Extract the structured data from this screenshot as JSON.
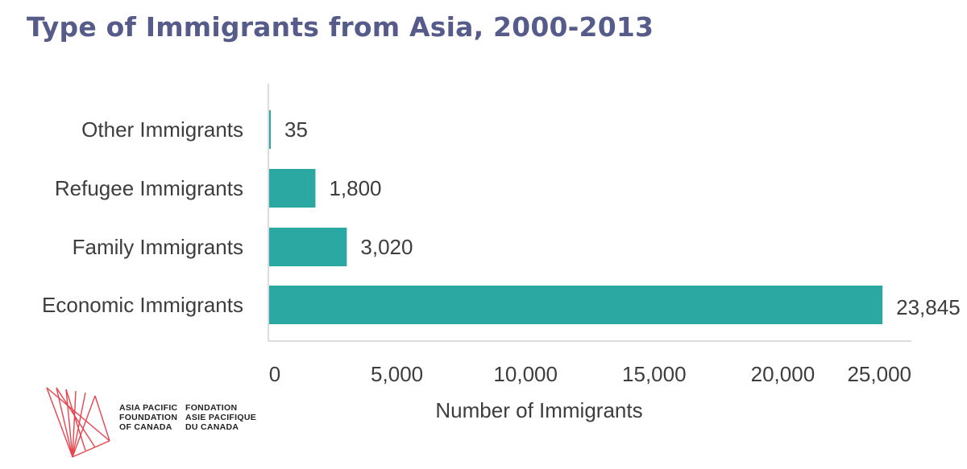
{
  "title": "Type of Immigrants from Asia, 2000-2013",
  "logo": {
    "text_en": "ASIA PACIFIC\nFOUNDATION\nOF CANADA",
    "text_fr": "FONDATION\nASIE PACIFIQUE\nDU CANADA",
    "mark_color": "#e8434d",
    "icon": "apf-logo-icon"
  },
  "colors": {
    "bar": "#2aa8a1",
    "title": "#565b8a",
    "axis": "#d0d0d0",
    "text": "#3d3d3d"
  },
  "chart_data": {
    "type": "bar",
    "orientation": "horizontal",
    "categories": [
      "Other Immigrants",
      "Refugee Immigrants",
      "Family Immigrants",
      "Economic Immigrants"
    ],
    "values": [
      35,
      1800,
      3020,
      23845
    ],
    "value_labels": [
      "35",
      "1,800",
      "3,020",
      "23,845"
    ],
    "xlabel": "Number of Immigrants",
    "ylabel": "",
    "xlim": [
      0,
      25000
    ],
    "xticks": [
      0,
      5000,
      10000,
      15000,
      20000,
      25000
    ],
    "xtick_labels": [
      "0",
      "5,000",
      "10,000",
      "15,000",
      "20,000",
      "25,000"
    ],
    "grid": false,
    "legend": "none"
  }
}
